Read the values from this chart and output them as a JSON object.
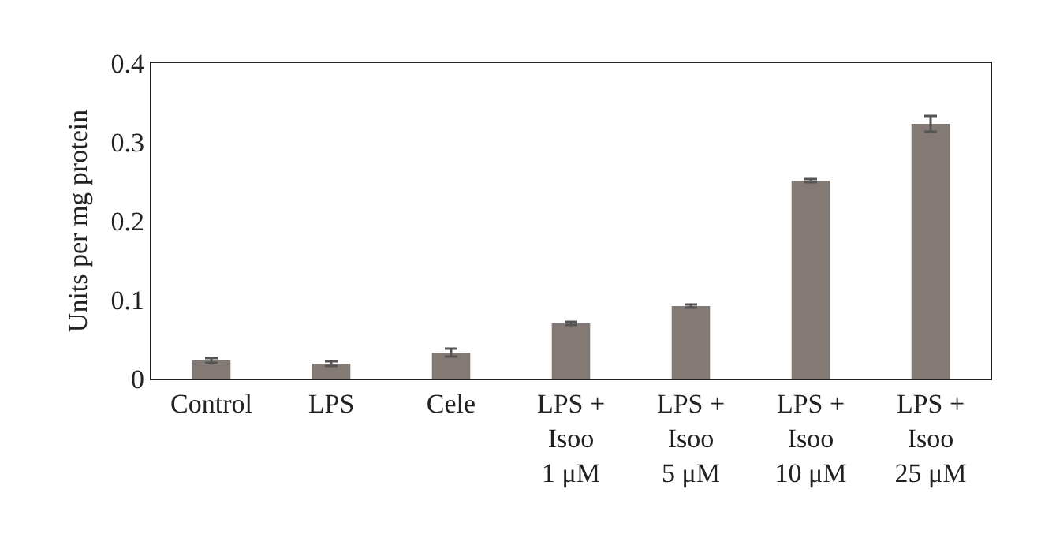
{
  "chart_data": {
    "type": "bar",
    "ylabel": "Units per mg protein",
    "categories": [
      "Control",
      "LPS",
      "Cele",
      "LPS +\nIsoo\n1 μM",
      "LPS +\nIsoo\n5 μM",
      "LPS +\nIsoo\n10 μM",
      "LPS +\nIsoo\n25 μM"
    ],
    "values": [
      0.023,
      0.019,
      0.033,
      0.07,
      0.092,
      0.251,
      0.323
    ],
    "errors": [
      0.003,
      0.003,
      0.005,
      0.002,
      0.002,
      0.002,
      0.01
    ],
    "color": "#837a75",
    "ylim": [
      0,
      0.4
    ],
    "yticks": [
      0,
      0.1,
      0.2,
      0.3,
      0.4
    ],
    "grid": false
  }
}
